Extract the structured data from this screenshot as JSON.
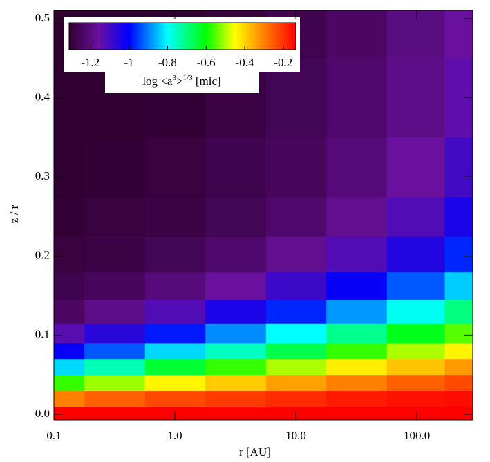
{
  "chart_data": {
    "type": "heatmap",
    "xlabel": "r [AU]",
    "ylabel": "z / r",
    "xscale": "log",
    "xlim": [
      0.1,
      290
    ],
    "ylim": [
      -0.007,
      0.5105
    ],
    "xticks": [
      0.1,
      {
        "value": 1,
        "label": "1.0"
      },
      {
        "value": 10,
        "label": "10.0"
      },
      {
        "value": 100,
        "label": "100.0"
      }
    ],
    "yticks": [
      {
        "value": 0,
        "label": "0.0"
      },
      0.1,
      0.2,
      0.3,
      0.4,
      0.5
    ],
    "x": [
      0.1,
      0.32,
      1,
      3.2,
      10,
      32,
      100,
      290
    ],
    "y": [
      0,
      0.02,
      0.04,
      0.06,
      0.08,
      0.1,
      0.13,
      0.16,
      0.2,
      0.25,
      0.3,
      0.4,
      0.5
    ],
    "z": [
      [
        -0.1,
        -0.1,
        -0.1,
        -0.1,
        -0.1,
        -0.1,
        -0.1,
        -0.1
      ],
      [
        -0.3,
        -0.26,
        -0.23,
        -0.21,
        -0.19,
        -0.17,
        -0.16,
        -0.15
      ],
      [
        -0.57,
        -0.51,
        -0.44,
        -0.39,
        -0.34,
        -0.3,
        -0.26,
        -0.23
      ],
      [
        -0.83,
        -0.74,
        -0.64,
        -0.57,
        -0.5,
        -0.43,
        -0.38,
        -0.33
      ],
      [
        -1.01,
        -0.93,
        -0.83,
        -0.75,
        -0.66,
        -0.57,
        -0.5,
        -0.44
      ],
      [
        -1.13,
        -1.06,
        -0.98,
        -0.89,
        -0.8,
        -0.71,
        -0.62,
        -0.55
      ],
      [
        -1.24,
        -1.19,
        -1.12,
        -1.04,
        -0.97,
        -0.88,
        -0.79,
        -0.7
      ],
      [
        -1.27,
        -1.25,
        -1.21,
        -1.16,
        -1.09,
        -1.01,
        -0.93,
        -0.84
      ],
      [
        -1.29,
        -1.28,
        -1.26,
        -1.23,
        -1.18,
        -1.12,
        -1.05,
        -0.97
      ],
      [
        -1.3,
        -1.29,
        -1.28,
        -1.26,
        -1.23,
        -1.18,
        -1.12,
        -1.04
      ],
      [
        -1.31,
        -1.3,
        -1.29,
        -1.27,
        -1.25,
        -1.21,
        -1.16,
        -1.1
      ],
      [
        -1.33,
        -1.32,
        -1.3,
        -1.28,
        -1.26,
        -1.23,
        -1.19,
        -1.14
      ],
      [
        -1.34,
        -1.33,
        -1.31,
        -1.29,
        -1.27,
        -1.24,
        -1.2,
        -1.16
      ]
    ],
    "clim": [
      -1.31,
      -0.135
    ],
    "colormap": [
      [
        0,
        "#300030"
      ],
      [
        0.13,
        "#6a10a0"
      ],
      [
        0.264,
        "#0000ff"
      ],
      [
        0.434,
        "#00ffff"
      ],
      [
        0.604,
        "#00ff00"
      ],
      [
        0.73,
        "#ffff00"
      ],
      [
        0.86,
        "#ff8000"
      ],
      [
        1,
        "#ff0000"
      ]
    ],
    "colorbar_ticks": [
      -1.2,
      -1.0,
      -0.8,
      -0.6,
      -0.4,
      -0.2
    ],
    "colorbar_label": [
      "log <a",
      "3",
      ">",
      "1/3",
      " [mic]"
    ]
  }
}
